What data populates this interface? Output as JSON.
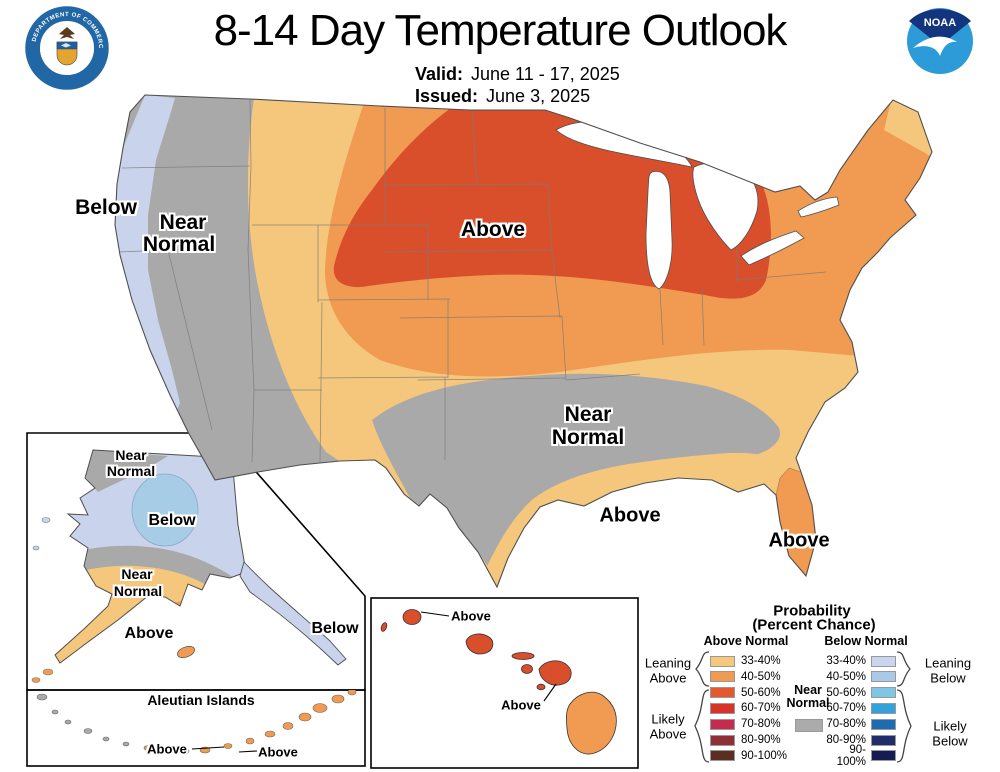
{
  "header": {
    "title": "8-14 Day Temperature Outlook",
    "valid_label": "Valid:",
    "valid_value": "June 11 - 17, 2025",
    "issued_label": "Issued:",
    "issued_value": "June 3, 2025"
  },
  "logos": {
    "noaa_text": "NOAA",
    "doc_text_top": "DEPARTMENT OF COMMERCE",
    "doc_text_bottom": "UNITED STATES OF AMERICA"
  },
  "map_labels": {
    "west_below": "Below",
    "west_near": "Near",
    "west_normal": "Normal",
    "center_above": "Above",
    "south_near": "Near",
    "south_normal": "Normal",
    "gulf_above": "Above",
    "florida_above": "Above",
    "ak_north_near": "Near",
    "ak_north_normal": "Normal",
    "ak_below": "Below",
    "ak_south_near": "Near",
    "ak_south_normal": "Normal",
    "ak_above": "Above",
    "ak_panhandle_below": "Below",
    "aleutian_title": "Aleutian Islands",
    "aleutian_above_left": "Above",
    "aleutian_above_right": "Above",
    "hi_above_top": "Above",
    "hi_above_bottom": "Above"
  },
  "legend": {
    "title": "Probability",
    "subtitle": "(Percent Chance)",
    "above_header": "Above Normal",
    "below_header": "Below Normal",
    "near_line1": "Near",
    "near_line2": "Normal",
    "leaning_above_line1": "Leaning",
    "leaning_above_line2": "Above",
    "likely_above_line1": "Likely",
    "likely_above_line2": "Above",
    "leaning_below_line1": "Leaning",
    "leaning_below_line2": "Below",
    "likely_below_line1": "Likely",
    "likely_below_line2": "Below",
    "ranges": [
      "33-40%",
      "40-50%",
      "50-60%",
      "60-70%",
      "70-80%",
      "80-90%",
      "90-100%"
    ],
    "above_colors": [
      "#F5C87E",
      "#F09B51",
      "#E4592E",
      "#D93327",
      "#C62B4E",
      "#8E3036",
      "#5C2D22"
    ],
    "below_colors": [
      "#CBD5EE",
      "#A9C9E8",
      "#7FC6E4",
      "#33A2DC",
      "#1B6CB0",
      "#1F2D69",
      "#141C52"
    ],
    "near_color": "#ABABAB"
  },
  "map_colors": {
    "above_33": "#F5C77D",
    "above_40": "#F09B51",
    "above_50": "#DA4F2B",
    "near_gray": "#A9A9A9",
    "below_33": "#C9D3EC",
    "below_40": "#A7CCE6",
    "outline": "#4F4F4F",
    "state_line": "#7A7A7A"
  }
}
